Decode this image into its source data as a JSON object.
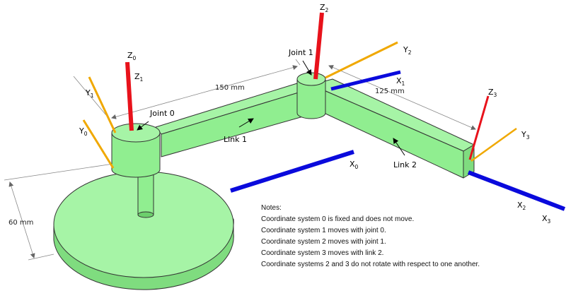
{
  "axes": {
    "z0": {
      "letter": "Z",
      "sub": "0"
    },
    "z1": {
      "letter": "Z",
      "sub": "1"
    },
    "y0": {
      "letter": "Y",
      "sub": "0"
    },
    "y1": {
      "letter": "Y",
      "sub": "1"
    },
    "x0": {
      "letter": "X",
      "sub": "0"
    },
    "z2": {
      "letter": "Z",
      "sub": "2"
    },
    "y2": {
      "letter": "Y",
      "sub": "2"
    },
    "x1": {
      "letter": "X",
      "sub": "1"
    },
    "z3": {
      "letter": "Z",
      "sub": "3"
    },
    "y3": {
      "letter": "Y",
      "sub": "3"
    },
    "x2": {
      "letter": "X",
      "sub": "2"
    },
    "x3": {
      "letter": "X",
      "sub": "3"
    }
  },
  "labels": {
    "joint0": "Joint 0",
    "joint1": "Joint 1",
    "link1": "Link 1",
    "link2": "Link 2"
  },
  "dimensions": {
    "link1_length": "150 mm",
    "link2_length": "125 mm",
    "height": "60 mm"
  },
  "notes": {
    "title": "Notes:",
    "lines": [
      "Coordinate system 0 is fixed and does not move.",
      "Coordinate system 1 moves with joint 0.",
      "Coordinate system 2 moves with joint 1.",
      "Coordinate system 3 moves with link 2.",
      "Coordinate systems 2 and 3 do not rotate with respect to one another."
    ]
  },
  "colors": {
    "z_axis": "#e8121b",
    "y_axis": "#f0a800",
    "x_axis": "#0a0adc",
    "body": "#90ee90"
  }
}
